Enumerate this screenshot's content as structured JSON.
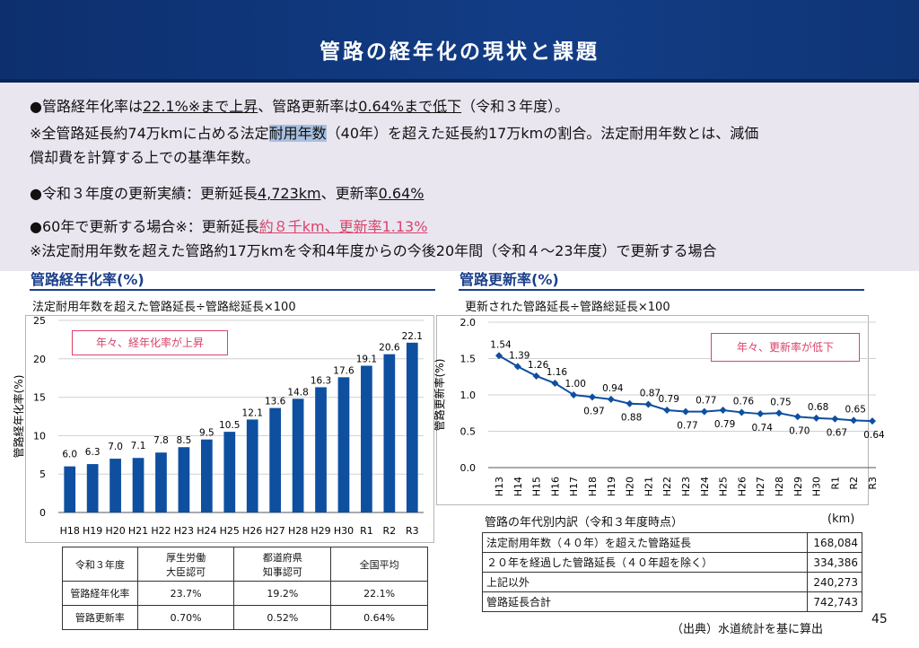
{
  "header": {
    "title": "管路の経年化の現状と課題"
  },
  "summary": {
    "l1": {
      "a": "●管路経年化率は",
      "b": "22.1%※まで上昇",
      "c": "、管路更新率は",
      "d": "0.64%まで低下",
      "e": "（令和３年度）。"
    },
    "l2": {
      "a": " ※全管路延長約74万kmに占める法定",
      "b": "耐用年数",
      "c": "（40年）を超えた延長約17万kmの割合。法定耐用年数とは、減価"
    },
    "l3": "償却費を計算する上での基準年数。",
    "l4": {
      "a": "●令和３年度の更新実績：更新延長",
      "b": "4,723km",
      "c": "、更新率",
      "d": "0.64%"
    },
    "l5": {
      "a": "●60年で更新する場合※：更新延長",
      "b": "約８千km、更新率1.13%"
    },
    "l6": " ※法定耐用年数を超えた管路約17万kmを令和4年度からの今後20年間（令和４～23年度）で更新する場合"
  },
  "left": {
    "title": "管路経年化率(%)",
    "formula": "法定耐用年数を超えた管路延長÷管路総延長×100",
    "callout": "年々、経年化率が上昇"
  },
  "right": {
    "title": "管路更新率(%)",
    "formula": "更新された管路延長÷管路総延長×100",
    "callout": "年々、更新率が低下"
  },
  "chart_data": [
    {
      "type": "bar",
      "title": "管路経年化率(%)",
      "ylabel": "管路経年化率(%)",
      "xlabel": "",
      "ylim": [
        0,
        25
      ],
      "yticks": [
        0,
        5,
        10,
        15,
        20,
        25
      ],
      "categories": [
        "H18",
        "H19",
        "H20",
        "H21",
        "H22",
        "H23",
        "H24",
        "H25",
        "H26",
        "H27",
        "H28",
        "H29",
        "H30",
        "R1",
        "R2",
        "R3"
      ],
      "values": [
        6.0,
        6.3,
        7.0,
        7.1,
        7.8,
        8.5,
        9.5,
        10.5,
        12.1,
        13.6,
        14.8,
        16.3,
        17.6,
        19.1,
        20.6,
        22.1
      ],
      "labels": [
        "6.0",
        "6.3",
        "7.0",
        "7.1",
        "7.8",
        "8.5",
        "9.5",
        "10.5",
        "12.1",
        "13.6",
        "14.8",
        "16.3",
        "17.6",
        "19.1",
        "20.6",
        "22.1"
      ],
      "color": "#0e4fa0"
    },
    {
      "type": "line",
      "title": "管路更新率(%)",
      "ylabel": "管路更新率(%)",
      "xlabel": "",
      "ylim": [
        0,
        2.0
      ],
      "yticks": [
        "0.0",
        "0.5",
        "1.0",
        "1.5",
        "2.0"
      ],
      "categories": [
        "H13",
        "H14",
        "H15",
        "H16",
        "H17",
        "H18",
        "H19",
        "H20",
        "H21",
        "H22",
        "H23",
        "H24",
        "H25",
        "H26",
        "H27",
        "H28",
        "H29",
        "H30",
        "R1",
        "R2",
        "R3"
      ],
      "values": [
        1.54,
        1.39,
        1.26,
        1.16,
        1.0,
        0.97,
        0.94,
        0.88,
        0.87,
        0.79,
        0.77,
        0.77,
        0.79,
        0.76,
        0.74,
        0.75,
        0.7,
        0.68,
        0.67,
        0.65,
        0.64
      ],
      "labels": [
        "1.54",
        "1.39",
        "1.26",
        "1.16",
        "1.00",
        "0.97",
        "0.94",
        "0.88",
        "0.87",
        "0.79",
        "0.77",
        "0.77",
        "0.79",
        "0.76",
        "0.74",
        "0.75",
        "0.70",
        "0.68",
        "0.67",
        "0.65",
        "0.64"
      ],
      "label_pos": [
        "a",
        "a",
        "a",
        "a",
        "a",
        "b",
        "a",
        "b",
        "a",
        "a",
        "b",
        "a",
        "b",
        "a",
        "b",
        "a",
        "b",
        "a",
        "b",
        "a",
        "b"
      ],
      "color": "#0e4fa0"
    }
  ],
  "table1": {
    "headers": [
      "令和３年度",
      "厚生労働\n大臣認可",
      "都道府県\n知事認可",
      "全国平均"
    ],
    "rows": [
      [
        "管路経年化率",
        "23.7%",
        "19.2%",
        "22.1%"
      ],
      [
        "管路更新率",
        "0.70%",
        "0.52%",
        "0.64%"
      ]
    ]
  },
  "table2": {
    "caption": "管路の年代別内訳（令和３年度時点）",
    "unit": "(km)",
    "rows": [
      [
        "法定耐用年数（４０年）を超えた管路延長",
        "168,084"
      ],
      [
        "２０年を経過した管路延長（４０年超を除く）",
        "334,386"
      ],
      [
        "上記以外",
        "240,273"
      ],
      [
        "管路延長合計",
        "742,743"
      ]
    ]
  },
  "footer": {
    "source": "（出典）水道統計を基に算出",
    "page": "45"
  }
}
